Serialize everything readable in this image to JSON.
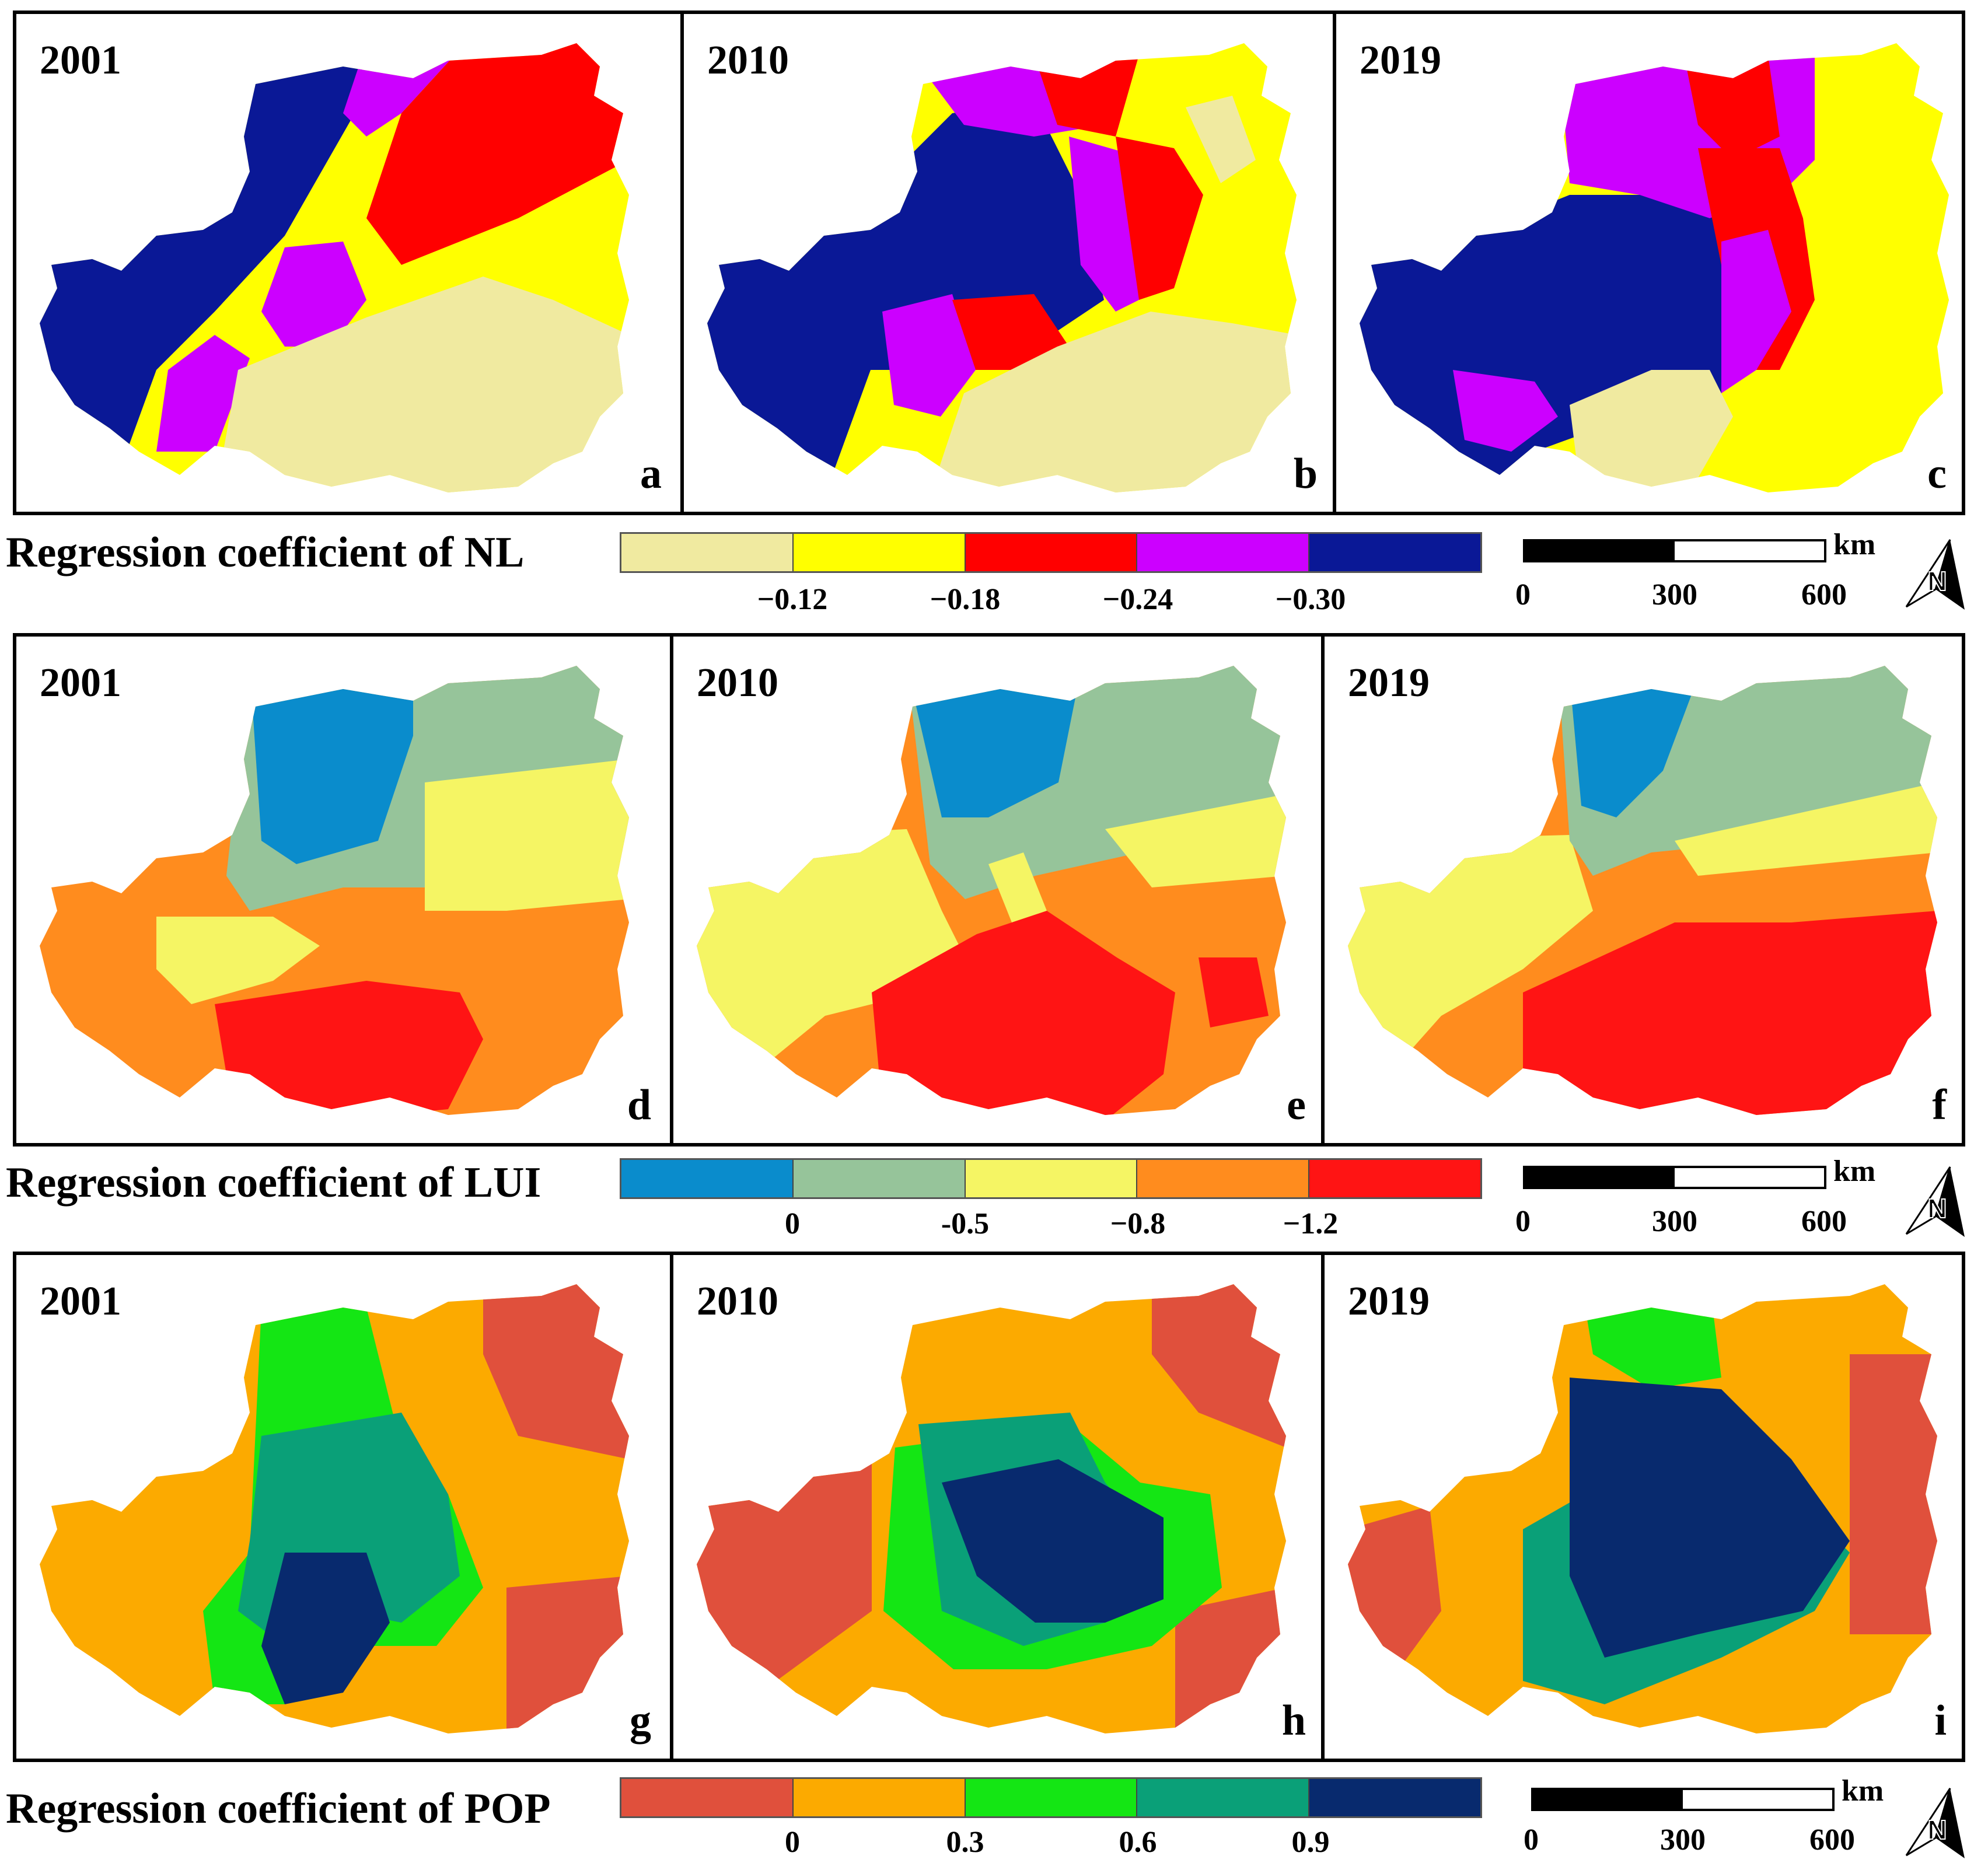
{
  "rows": [
    {
      "panels": [
        {
          "year": "2001",
          "letter": "a"
        },
        {
          "year": "2010",
          "letter": "b"
        },
        {
          "year": "2019",
          "letter": "c"
        }
      ],
      "legend": {
        "title": "Regression coefficient of NL",
        "colors": [
          "#f0eaa0",
          "#ffff00",
          "#ff0000",
          "#cc00ff",
          "#0a1896"
        ],
        "ticks": [
          "−0.12",
          "−0.18",
          "−0.24",
          "−0.30"
        ]
      }
    },
    {
      "panels": [
        {
          "year": "2001",
          "letter": "d"
        },
        {
          "year": "2010",
          "letter": "e"
        },
        {
          "year": "2019",
          "letter": "f"
        }
      ],
      "legend": {
        "title": "Regression coefficient of LUI",
        "colors": [
          "#0a8ccc",
          "#96c49a",
          "#f5f564",
          "#ff8c1e",
          "#ff1414"
        ],
        "ticks": [
          "0",
          "-0.5",
          "−0.8",
          "−1.2"
        ]
      }
    },
    {
      "panels": [
        {
          "year": "2001",
          "letter": "g"
        },
        {
          "year": "2010",
          "letter": "h"
        },
        {
          "year": "2019",
          "letter": "i"
        }
      ],
      "legend": {
        "title": "Regression coefficient of POP",
        "colors": [
          "#e0503c",
          "#fcaa00",
          "#14e614",
          "#0aa078",
          "#082a6e"
        ],
        "ticks": [
          "0",
          "0.3",
          "0.6",
          "0.9"
        ]
      }
    }
  ],
  "scale": {
    "unit": "km",
    "labels": [
      "0",
      "300",
      "600"
    ]
  },
  "north_arrow": {
    "letter": "N",
    "icon": "north-arrow-icon"
  }
}
